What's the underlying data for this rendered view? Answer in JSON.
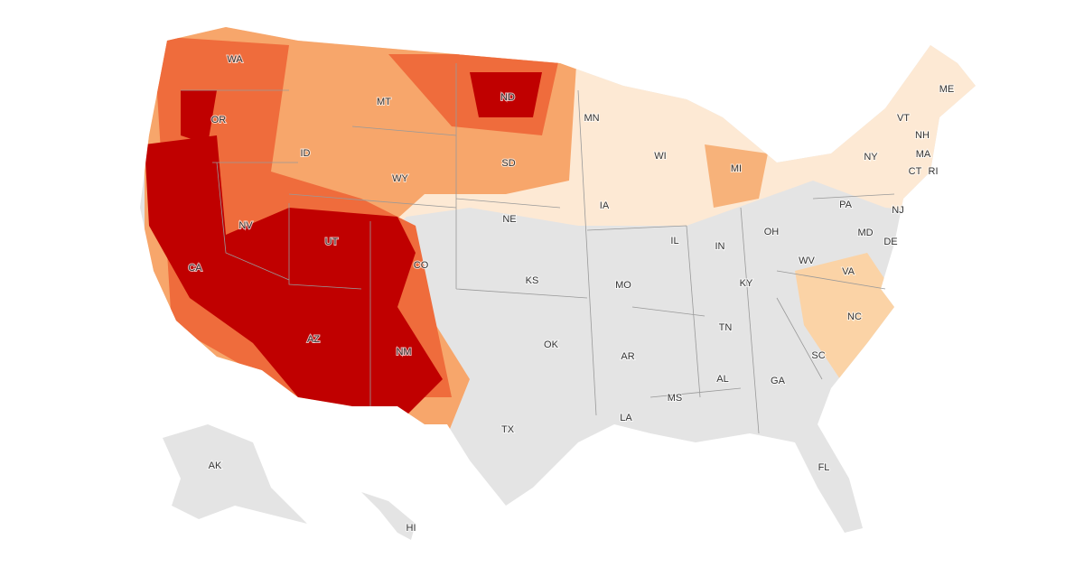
{
  "states": [
    {
      "label": "WA"
    },
    {
      "label": "OR"
    },
    {
      "label": "CA"
    },
    {
      "label": "NV"
    },
    {
      "label": "ID"
    },
    {
      "label": "MT"
    },
    {
      "label": "WY"
    },
    {
      "label": "UT"
    },
    {
      "label": "AZ"
    },
    {
      "label": "NM"
    },
    {
      "label": "CO"
    },
    {
      "label": "ND"
    },
    {
      "label": "SD"
    },
    {
      "label": "NE"
    },
    {
      "label": "KS"
    },
    {
      "label": "OK"
    },
    {
      "label": "TX"
    },
    {
      "label": "MN"
    },
    {
      "label": "IA"
    },
    {
      "label": "MO"
    },
    {
      "label": "AR"
    },
    {
      "label": "LA"
    },
    {
      "label": "WI"
    },
    {
      "label": "IL"
    },
    {
      "label": "IN"
    },
    {
      "label": "MI"
    },
    {
      "label": "OH"
    },
    {
      "label": "KY"
    },
    {
      "label": "TN"
    },
    {
      "label": "MS"
    },
    {
      "label": "AL"
    },
    {
      "label": "GA"
    },
    {
      "label": "FL"
    },
    {
      "label": "SC"
    },
    {
      "label": "NC"
    },
    {
      "label": "VA"
    },
    {
      "label": "WV"
    },
    {
      "label": "PA"
    },
    {
      "label": "NY"
    },
    {
      "label": "ME"
    },
    {
      "label": "VT"
    },
    {
      "label": "NH"
    },
    {
      "label": "MA"
    },
    {
      "label": "CT"
    },
    {
      "label": "RI"
    },
    {
      "label": "NJ"
    },
    {
      "label": "DE"
    },
    {
      "label": "MD"
    },
    {
      "label": "AK"
    },
    {
      "label": "HI"
    }
  ]
}
